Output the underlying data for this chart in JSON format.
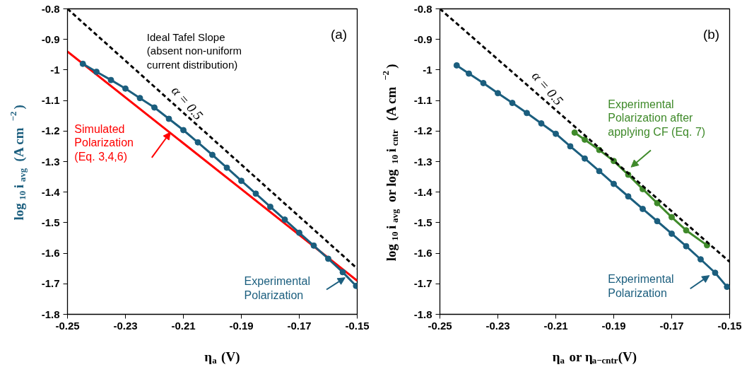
{
  "chart_data": [
    {
      "type": "line",
      "xlabel": "η$_{a}$ (V)",
      "ylabel": "log$_{10}$i$_{avg}$ (A cm$^{−2}$)",
      "xlim": [
        -0.25,
        -0.15
      ],
      "xticks": [
        -0.25,
        -0.23,
        -0.21,
        -0.19,
        -0.17,
        -0.15
      ],
      "ylim": [
        -1.8,
        -0.8
      ],
      "yticks": [
        -1.8,
        -1.7,
        -1.6,
        -1.5,
        -1.4,
        -1.3,
        -1.2,
        -1.1,
        -1,
        -0.9,
        -0.8
      ],
      "series": [
        {
          "color": "#000000",
          "line_style": "dashed",
          "x": [
            -0.25,
            -0.15
          ],
          "values": [
            -0.8,
            -1.65
          ]
        },
        {
          "color": "#ff0000",
          "x": [
            -0.25,
            -0.15
          ],
          "values": [
            -0.94,
            -1.69
          ]
        },
        {
          "color": "#1b5e7e",
          "marker": "circle",
          "x": [
            -0.2447,
            -0.24,
            -0.235,
            -0.23,
            -0.225,
            -0.22,
            -0.215,
            -0.21,
            -0.205,
            -0.2,
            -0.195,
            -0.19,
            -0.185,
            -0.18,
            -0.175,
            -0.17,
            -0.165,
            -0.16,
            -0.155,
            -0.1504
          ],
          "values": [
            -0.98,
            -1.006,
            -1.033,
            -1.061,
            -1.092,
            -1.123,
            -1.16,
            -1.197,
            -1.237,
            -1.278,
            -1.32,
            -1.363,
            -1.405,
            -1.448,
            -1.49,
            -1.533,
            -1.575,
            -1.618,
            -1.662,
            -1.707
          ]
        }
      ],
      "annotations": [
        "(a)",
        "Ideal Tafel Slope\n(absent non-uniform\ncurrent distribution)",
        "α = 0.5",
        "Simulated\nPolarization\n(Eq. 3,4,6)",
        "Experimental\nPolarization"
      ]
    },
    {
      "type": "line",
      "xlabel": "η$_{a}$ or η$_{a−cntr}$(V)",
      "ylabel": "log$_{10}$i$_{avg}$ or log$_{10}$i$_{cntr}$ (A cm$^{−2}$)",
      "xlim": [
        -0.25,
        -0.15
      ],
      "xticks": [
        -0.25,
        -0.23,
        -0.21,
        -0.19,
        -0.17,
        -0.15
      ],
      "ylim": [
        -1.8,
        -0.8
      ],
      "yticks": [
        -1.8,
        -1.7,
        -1.6,
        -1.5,
        -1.4,
        -1.3,
        -1.2,
        -1.1,
        -1,
        -0.9,
        -0.8
      ],
      "series": [
        {
          "color": "#1b5e7e",
          "marker": "circle",
          "x": [
            -0.2442,
            -0.24,
            -0.235,
            -0.23,
            -0.225,
            -0.22,
            -0.215,
            -0.21,
            -0.205,
            -0.2,
            -0.195,
            -0.19,
            -0.185,
            -0.18,
            -0.175,
            -0.17,
            -0.165,
            -0.16,
            -0.155,
            -0.1509
          ],
          "values": [
            -0.985,
            -1.012,
            -1.043,
            -1.076,
            -1.108,
            -1.141,
            -1.175,
            -1.209,
            -1.25,
            -1.29,
            -1.331,
            -1.373,
            -1.414,
            -1.455,
            -1.495,
            -1.536,
            -1.577,
            -1.62,
            -1.664,
            -1.71
          ]
        },
        {
          "color": "#3f8a2a",
          "marker": "circle",
          "x": [
            -0.2035,
            -0.2,
            -0.195,
            -0.19,
            -0.185,
            -0.18,
            -0.175,
            -0.17,
            -0.165,
            -0.1578
          ],
          "values": [
            -1.205,
            -1.228,
            -1.262,
            -1.298,
            -1.343,
            -1.39,
            -1.436,
            -1.482,
            -1.525,
            -1.574
          ]
        },
        {
          "color": "#000000",
          "line_style": "dashed",
          "x": [
            -0.25,
            -0.15
          ],
          "values": [
            -0.8,
            -1.628
          ]
        }
      ],
      "annotations": [
        "(b)",
        "α = 0.5",
        "Experimental\nPolarization after\napplying CF (Eq. 7)",
        "Experimental\nPolarization"
      ]
    }
  ]
}
